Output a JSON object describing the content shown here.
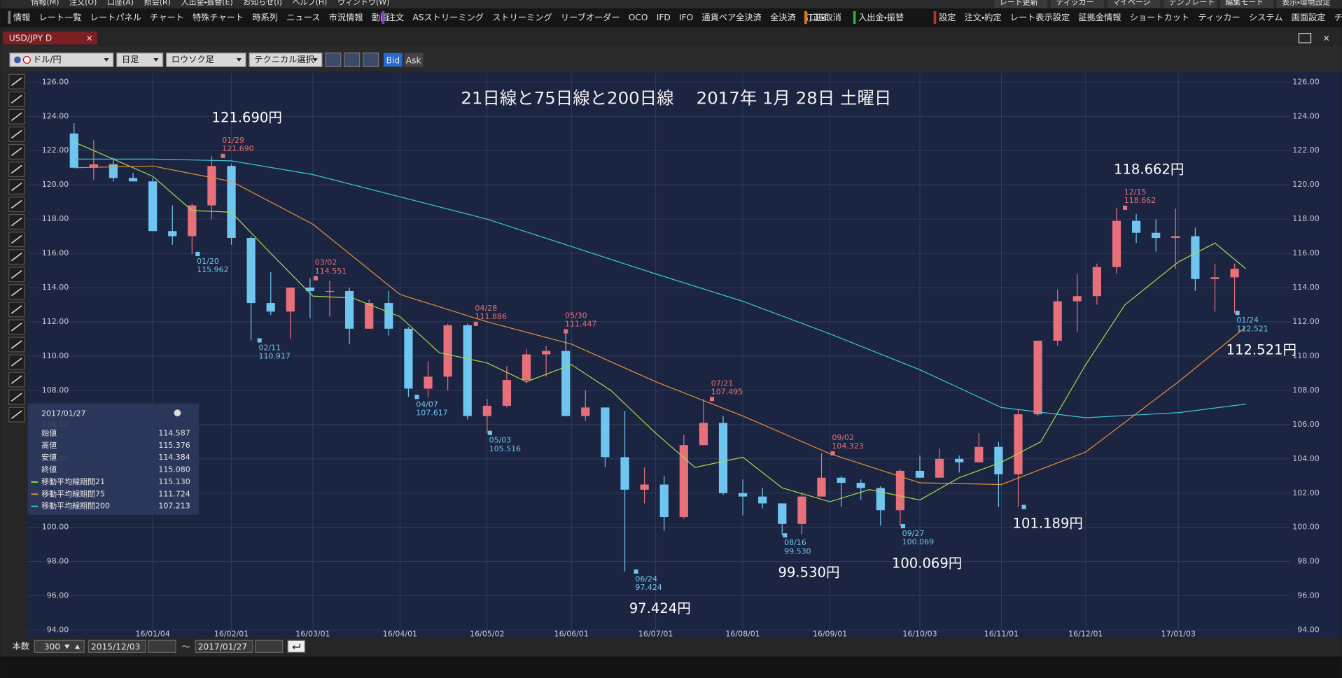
{
  "ui": {
    "menu": [
      "情報(M)",
      "注文(O)",
      "口座(A)",
      "照会(R)",
      "入出金・振替(E)",
      "お知らせ(I)",
      "ヘルプ(H)",
      "ウィンドウ(W)"
    ],
    "menu_right": [
      "レート更新",
      "ティッカー",
      "マイページ",
      "テンプレート",
      "編集モード",
      "表示・環境設定"
    ],
    "toolbar": [
      [
        "情報",
        "レート一覧",
        "レートパネル",
        "チャート",
        "特殊チャート",
        "時系列",
        "ニュース",
        "市況情報",
        "動画"
      ],
      [
        "注文",
        "ASストリーミング",
        "ストリーミング",
        "リーブオーダー",
        "OCO",
        "IFD",
        "IFO",
        "通貨ペア全決済",
        "全決済",
        "訂正・取消"
      ],
      [
        "口座"
      ],
      [
        "入出金・振替"
      ],
      [
        "設定",
        "注文・約定",
        "レート表示設定",
        "証拠金情報",
        "ショートカット",
        "ティッカー",
        "システム",
        "画面設定",
        "チャート"
      ]
    ],
    "tab": "USD/JPY D",
    "pair": "ドル/円",
    "period": "日足",
    "style": "ロウソク足",
    "technical": "テクニカル選択",
    "bid": "Bid",
    "ask": "Ask",
    "count_label": "本数",
    "count": "300",
    "range_sep": "～",
    "info": {
      "rows": [
        {
          "label": "始値",
          "value": "114.587"
        },
        {
          "label": "高値",
          "value": "115.376"
        },
        {
          "label": "安値",
          "value": "114.384"
        },
        {
          "label": "終値",
          "value": "115.080"
        }
      ],
      "ma_values": [
        "115.130",
        "111.724",
        "107.213"
      ]
    }
  },
  "chart_data": {
    "type": "candlestick",
    "title": "21日線と75日線と200日線　 2017年 1月 28日 土曜日",
    "xlim": [
      "2015/12/03",
      "2017/01/27"
    ],
    "xticks": [
      "16/01/04",
      "16/02/01",
      "16/03/01",
      "16/04/01",
      "16/05/02",
      "16/06/01",
      "16/07/01",
      "16/08/01",
      "16/09/01",
      "16/10/03",
      "16/11/01",
      "16/12/01",
      "17/01/03"
    ],
    "ylim": [
      94,
      126
    ],
    "yticks": [
      {
        "value": 94,
        "label": "94.00"
      },
      {
        "value": 96,
        "label": "96.00"
      },
      {
        "value": 98,
        "label": "98.00"
      },
      {
        "value": 100,
        "label": "100.00"
      },
      {
        "value": 102,
        "label": "102.00"
      },
      {
        "value": 104,
        "label": "104.00"
      },
      {
        "value": 106,
        "label": "106.00"
      },
      {
        "value": 108,
        "label": "108.00"
      },
      {
        "value": 110,
        "label": "110.00"
      },
      {
        "value": 112,
        "label": "112.00"
      },
      {
        "value": 114,
        "label": "114.00"
      },
      {
        "value": 116,
        "label": "116.00"
      },
      {
        "value": 118,
        "label": "118.00"
      },
      {
        "value": 120,
        "label": "120.00"
      },
      {
        "value": 122,
        "label": "122.00"
      },
      {
        "value": 124,
        "label": "124.00"
      },
      {
        "value": 126,
        "label": "126.00"
      }
    ],
    "grid": true,
    "up_color": "#e8707a",
    "down_color": "#6ec6f0",
    "x": [
      "15/12/07",
      "15/12/14",
      "15/12/21",
      "15/12/28",
      "16/01/04",
      "16/01/11",
      "16/01/18",
      "16/01/25",
      "16/02/01",
      "16/02/08",
      "16/02/15",
      "16/02/22",
      "16/02/29",
      "16/03/07",
      "16/03/14",
      "16/03/21",
      "16/03/28",
      "16/04/04",
      "16/04/11",
      "16/04/18",
      "16/04/25",
      "16/05/02",
      "16/05/09",
      "16/05/16",
      "16/05/23",
      "16/05/30",
      "16/06/06",
      "16/06/13",
      "16/06/20",
      "16/06/27",
      "16/07/04",
      "16/07/11",
      "16/07/18",
      "16/07/25",
      "16/08/01",
      "16/08/08",
      "16/08/15",
      "16/08/22",
      "16/08/29",
      "16/09/05",
      "16/09/12",
      "16/09/19",
      "16/09/26",
      "16/10/03",
      "16/10/10",
      "16/10/17",
      "16/10/24",
      "16/10/31",
      "16/11/07",
      "16/11/14",
      "16/11/21",
      "16/11/28",
      "16/12/05",
      "16/12/12",
      "16/12/19",
      "16/12/26",
      "17/01/02",
      "17/01/09",
      "17/01/16",
      "17/01/23"
    ],
    "open": [
      123.0,
      121.0,
      121.2,
      120.4,
      120.2,
      117.3,
      117.0,
      118.8,
      121.1,
      116.9,
      113.1,
      112.6,
      114.0,
      113.8,
      113.8,
      111.6,
      113.1,
      111.6,
      108.1,
      108.8,
      111.8,
      106.5,
      107.1,
      108.6,
      110.1,
      110.3,
      106.5,
      107.0,
      104.1,
      102.2,
      102.5,
      100.6,
      104.8,
      106.1,
      102.0,
      101.8,
      101.4,
      100.2,
      101.8,
      102.9,
      102.6,
      102.3,
      101.0,
      103.3,
      102.9,
      104.0,
      103.8,
      104.7,
      103.1,
      106.6,
      110.9,
      113.2,
      113.5,
      115.2,
      117.9,
      117.2,
      116.9,
      117.0,
      114.5,
      114.6
    ],
    "high": [
      123.6,
      122.6,
      121.6,
      120.7,
      120.4,
      118.8,
      118.9,
      121.69,
      121.2,
      117.0,
      114.9,
      114.0,
      114.551,
      114.4,
      114.0,
      113.3,
      113.8,
      111.7,
      109.7,
      111.886,
      111.9,
      107.5,
      109.4,
      110.4,
      110.6,
      111.447,
      108.0,
      107.0,
      106.8,
      103.5,
      103.0,
      105.4,
      107.495,
      106.5,
      102.8,
      102.3,
      101.4,
      102.0,
      104.323,
      103.0,
      102.8,
      102.4,
      103.4,
      104.2,
      104.6,
      104.2,
      105.5,
      105.0,
      106.9,
      110.9,
      113.9,
      114.8,
      115.4,
      118.662,
      118.3,
      118.0,
      118.6,
      117.5,
      115.4,
      115.4
    ],
    "low": [
      121.0,
      120.3,
      120.2,
      120.2,
      117.3,
      116.5,
      115.962,
      118.0,
      116.5,
      110.917,
      112.4,
      111.0,
      112.2,
      112.3,
      110.7,
      111.6,
      111.2,
      107.617,
      107.6,
      108.0,
      106.3,
      105.516,
      107.0,
      108.4,
      108.8,
      106.6,
      106.2,
      103.5,
      97.424,
      101.4,
      99.8,
      100.5,
      104.8,
      101.9,
      100.7,
      101.1,
      99.53,
      99.6,
      101.8,
      101.2,
      101.6,
      100.1,
      100.069,
      102.9,
      102.9,
      103.2,
      103.8,
      101.189,
      101.2,
      106.5,
      110.6,
      111.4,
      113.0,
      114.8,
      116.6,
      116.1,
      115.1,
      113.8,
      112.6,
      112.521
    ],
    "close": [
      121.0,
      121.2,
      120.4,
      120.2,
      117.3,
      117.0,
      118.8,
      121.1,
      116.9,
      113.1,
      112.6,
      114.0,
      113.8,
      113.8,
      111.6,
      113.1,
      111.6,
      108.1,
      108.8,
      111.8,
      106.5,
      107.1,
      108.6,
      110.1,
      110.3,
      106.5,
      107.0,
      104.1,
      102.2,
      102.5,
      100.6,
      104.8,
      106.1,
      102.0,
      101.8,
      101.4,
      100.2,
      101.8,
      102.9,
      102.6,
      102.3,
      101.0,
      103.3,
      102.9,
      104.0,
      103.8,
      104.7,
      103.1,
      106.6,
      110.9,
      113.2,
      113.5,
      115.2,
      117.9,
      117.2,
      116.9,
      117.0,
      114.5,
      114.6,
      115.1
    ],
    "ma_series": [
      {
        "name": "移動平均線期間21",
        "color": "#a8d84a",
        "x": [
          "15/12/07",
          "15/12/21",
          "16/01/04",
          "16/01/18",
          "16/02/01",
          "16/02/15",
          "16/03/01",
          "16/03/15",
          "16/04/01",
          "16/04/15",
          "16/05/02",
          "16/05/16",
          "16/06/01",
          "16/06/15",
          "16/07/01",
          "16/07/15",
          "16/08/01",
          "16/08/15",
          "16/09/01",
          "16/09/15",
          "16/10/03",
          "16/10/17",
          "16/11/01",
          "16/11/15",
          "16/12/01",
          "16/12/15",
          "17/01/03",
          "17/01/16",
          "17/01/27"
        ],
        "values": [
          122.5,
          121.5,
          120.5,
          118.5,
          118.4,
          116.0,
          113.5,
          113.4,
          112.3,
          110.2,
          109.6,
          108.5,
          109.5,
          108.0,
          105.5,
          103.5,
          104.1,
          102.3,
          101.5,
          102.2,
          101.6,
          102.9,
          103.8,
          105.0,
          109.5,
          113.0,
          115.5,
          116.6,
          115.1
        ]
      },
      {
        "name": "移動平均線期間75",
        "color": "#e8903a",
        "x": [
          "15/12/07",
          "16/01/04",
          "16/02/01",
          "16/03/01",
          "16/04/01",
          "16/05/02",
          "16/06/01",
          "16/07/01",
          "16/08/01",
          "16/09/01",
          "16/10/03",
          "16/11/01",
          "16/12/01",
          "17/01/03",
          "17/01/27"
        ],
        "values": [
          121.0,
          121.1,
          120.2,
          117.7,
          113.6,
          112.0,
          110.7,
          108.5,
          106.5,
          104.3,
          102.6,
          102.5,
          104.4,
          108.5,
          111.7
        ]
      },
      {
        "name": "移動平均線期間200",
        "color": "#3cc8d8",
        "x": [
          "15/12/07",
          "16/01/04",
          "16/02/01",
          "16/03/01",
          "16/04/01",
          "16/05/02",
          "16/06/01",
          "16/07/01",
          "16/08/01",
          "16/09/01",
          "16/10/03",
          "16/11/01",
          "16/12/01",
          "17/01/03",
          "17/01/27"
        ],
        "values": [
          121.5,
          121.5,
          121.4,
          120.6,
          119.3,
          118.0,
          116.4,
          114.8,
          113.2,
          111.3,
          109.2,
          107.0,
          106.4,
          106.7,
          107.2
        ]
      }
    ],
    "annotations": [
      {
        "x": "16/01/29",
        "label": "01/29",
        "value": 121.69,
        "value_label": "121.690",
        "kind": "high",
        "callout": "121.690円"
      },
      {
        "x": "16/01/20",
        "label": "01/20",
        "value": 115.962,
        "value_label": "115.962",
        "kind": "low"
      },
      {
        "x": "16/02/11",
        "label": "02/11",
        "value": 110.917,
        "value_label": "110.917",
        "kind": "low"
      },
      {
        "x": "16/03/02",
        "label": "03/02",
        "value": 114.551,
        "value_label": "114.551",
        "kind": "high"
      },
      {
        "x": "16/04/07",
        "label": "04/07",
        "value": 107.617,
        "value_label": "107.617",
        "kind": "low"
      },
      {
        "x": "16/04/28",
        "label": "04/28",
        "value": 111.886,
        "value_label": "111.886",
        "kind": "high"
      },
      {
        "x": "16/05/03",
        "label": "05/03",
        "value": 105.516,
        "value_label": "105.516",
        "kind": "low"
      },
      {
        "x": "16/05/30",
        "label": "05/30",
        "value": 111.447,
        "value_label": "111.447",
        "kind": "high"
      },
      {
        "x": "16/06/24",
        "label": "06/24",
        "value": 97.424,
        "value_label": "97.424",
        "kind": "low",
        "callout": "97.424円"
      },
      {
        "x": "16/07/21",
        "label": "07/21",
        "value": 107.495,
        "value_label": "107.495",
        "kind": "high"
      },
      {
        "x": "16/08/16",
        "label": "08/16",
        "value": 99.53,
        "value_label": "99.530",
        "kind": "low",
        "callout": "99.530円"
      },
      {
        "x": "16/09/02",
        "label": "09/02",
        "value": 104.323,
        "value_label": "104.323",
        "kind": "high"
      },
      {
        "x": "16/09/27",
        "label": "09/27",
        "value": 100.069,
        "value_label": "100.069",
        "kind": "low",
        "callout": "100.069円"
      },
      {
        "x": "16/11/09",
        "value": 101.189,
        "kind": "low",
        "callout": "101.189円"
      },
      {
        "x": "16/12/15",
        "label": "12/15",
        "value": 118.662,
        "value_label": "118.662",
        "kind": "high",
        "callout": "118.662円"
      },
      {
        "x": "17/01/24",
        "label": "01/24",
        "value": 112.521,
        "value_label": "112.521",
        "kind": "low",
        "callout": "112.521円"
      }
    ]
  }
}
